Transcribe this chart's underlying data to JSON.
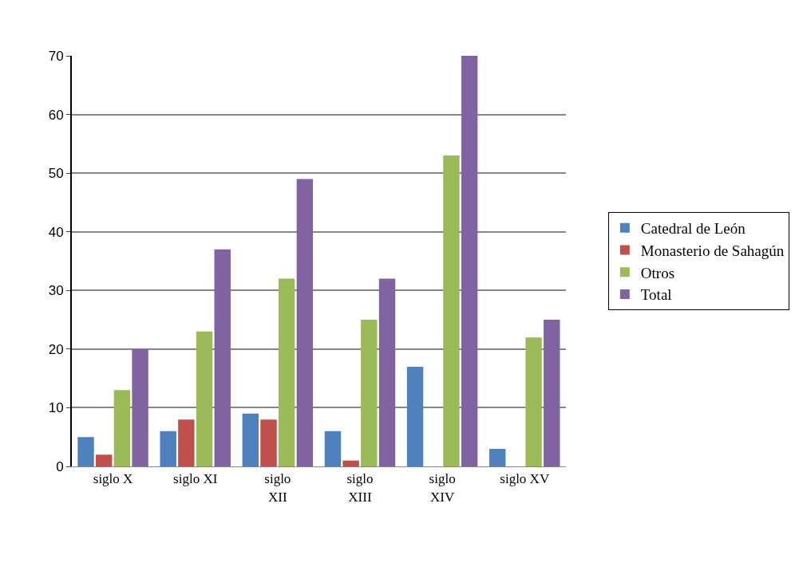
{
  "chart_data": {
    "type": "bar",
    "categories": [
      "siglo X",
      "siglo XI",
      "siglo XII",
      "siglo XIII",
      "siglo XIV",
      "siglo XV"
    ],
    "series": [
      {
        "name": "Catedral de León",
        "color": "#4f81bd",
        "values": [
          5,
          6,
          9,
          6,
          17,
          3
        ]
      },
      {
        "name": "Monasterio de Sahagún",
        "color": "#c0504d",
        "values": [
          2,
          8,
          8,
          1,
          0,
          0
        ]
      },
      {
        "name": "Otros",
        "color": "#9bbb59",
        "values": [
          13,
          23,
          32,
          25,
          53,
          22
        ]
      },
      {
        "name": "Total",
        "color": "#8064a2",
        "values": [
          20,
          37,
          49,
          32,
          70,
          25
        ]
      }
    ],
    "ylim": [
      0,
      70
    ],
    "yticks": [
      0,
      10,
      20,
      30,
      40,
      50,
      60,
      70
    ],
    "grid": "y",
    "legend": "right"
  }
}
